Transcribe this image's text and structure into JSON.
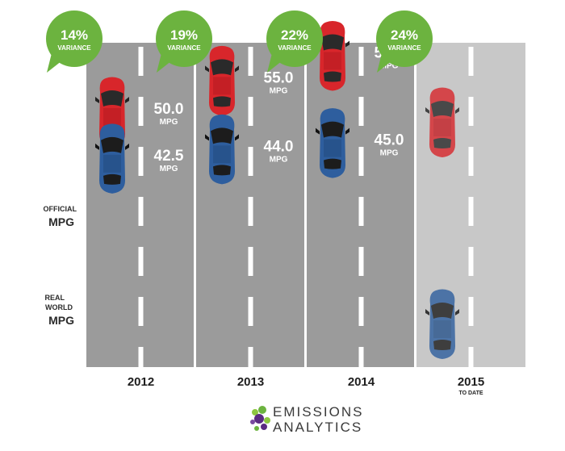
{
  "legend": {
    "official_line1": "OFFICIAL",
    "official_line2": "MPG",
    "real_line1": "REAL",
    "real_line2": "WORLD",
    "real_line3": "MPG"
  },
  "logo": {
    "line1": "EMISSIONS",
    "line2": "ANALYTICS"
  },
  "colors": {
    "road_dark": "#9b9b9b",
    "road_light": "#c8c8c8",
    "bubble_green": "#6cb33f",
    "car_red": "#d8262b",
    "car_blue": "#2e5e9e"
  },
  "chart_data": {
    "type": "infographic",
    "categories": [
      "2012",
      "2013",
      "2014",
      "2015"
    ],
    "category_sublabels": [
      "",
      "",
      "",
      "TO DATE"
    ],
    "series": [
      {
        "name": "OFFICIAL MPG",
        "values": [
          50.0,
          55.0,
          59.0,
          null
        ]
      },
      {
        "name": "REAL WORLD MPG",
        "values": [
          42.5,
          44.0,
          45.0,
          null
        ]
      }
    ],
    "value_labels": {
      "official": [
        "50.0",
        "55.0",
        "59.0",
        ""
      ],
      "real": [
        "42.5",
        "44.0",
        "45.0",
        ""
      ],
      "unit": "MPG"
    },
    "variance": [
      {
        "value": "14%",
        "label": "VARIANCE"
      },
      {
        "value": "19%",
        "label": "VARIANCE"
      },
      {
        "value": "22%",
        "label": "VARIANCE"
      },
      {
        "value": "24%",
        "label": "VARIANCE"
      }
    ]
  }
}
